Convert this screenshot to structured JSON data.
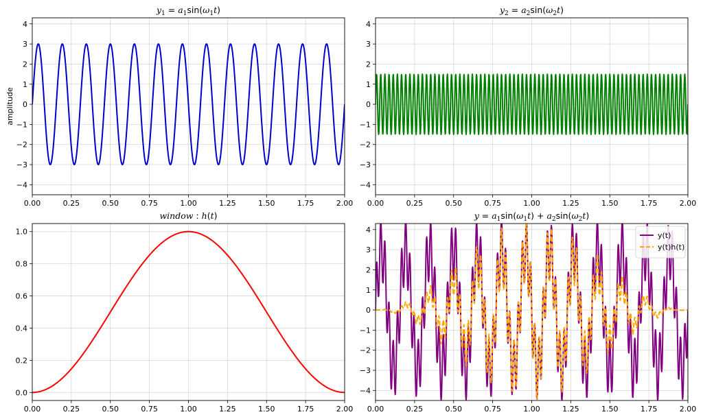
{
  "chart_data": [
    {
      "type": "line",
      "title": "y1 = a1 sin(ω1 t)",
      "title_parts": [
        "y",
        "1",
        " = ",
        "a",
        "1",
        "sin(",
        "ω",
        "1",
        "t",
        ")"
      ],
      "ylabel": "amplitude",
      "xlim": [
        0,
        2
      ],
      "ylim": [
        -4.5,
        4.3
      ],
      "x_ticks": [
        "0.00",
        "0.25",
        "0.50",
        "0.75",
        "1.00",
        "1.25",
        "1.50",
        "1.75",
        "2.00"
      ],
      "y_ticks": [
        "−4",
        "−3",
        "−2",
        "−1",
        "0",
        "1",
        "2",
        "3",
        "4"
      ],
      "grid": true,
      "series": [
        {
          "amplitude": 3,
          "frequency_hz": 6.5,
          "color": "#0000cc",
          "samples": 1000
        }
      ]
    },
    {
      "type": "line",
      "title": "y2 = a2 sin(ω2 t)",
      "title_parts": [
        "y",
        "2",
        " = ",
        "a",
        "2",
        "sin(",
        "ω",
        "2",
        "t",
        ")"
      ],
      "xlim": [
        0,
        2
      ],
      "ylim": [
        -4.5,
        4.3
      ],
      "x_ticks": [
        "0.00",
        "0.25",
        "0.50",
        "0.75",
        "1.00",
        "1.25",
        "1.50",
        "1.75",
        "2.00"
      ],
      "y_ticks": [
        "−4",
        "−3",
        "−2",
        "−1",
        "0",
        "1",
        "2",
        "3",
        "4"
      ],
      "grid": true,
      "series": [
        {
          "amplitude": 1.5,
          "frequency_hz": 37.5,
          "color": "#008000",
          "samples": 1000
        }
      ]
    },
    {
      "type": "line",
      "title": "window : h(t)",
      "title_parts": [
        "window",
        " : ",
        "h",
        "(",
        "t",
        ")"
      ],
      "xlim": [
        0,
        2
      ],
      "ylim": [
        -0.05,
        1.05
      ],
      "x_ticks": [
        "0.00",
        "0.25",
        "0.50",
        "0.75",
        "1.00",
        "1.25",
        "1.50",
        "1.75",
        "2.00"
      ],
      "y_ticks": [
        "0.0",
        "0.2",
        "0.4",
        "0.6",
        "0.8",
        "1.0"
      ],
      "grid": true,
      "series": [
        {
          "function": "hann",
          "color": "#ff0000",
          "samples": 400
        }
      ]
    },
    {
      "type": "line",
      "title": "y = a1 sin(ω1 t) + a2 sin(ω2 t)",
      "title_parts": [
        "y",
        " = ",
        "a",
        "1",
        "sin(",
        "ω",
        "1",
        "t",
        ") + ",
        "a",
        "2",
        "sin(",
        "ω",
        "2",
        "t",
        ")"
      ],
      "xlim": [
        0,
        2
      ],
      "ylim": [
        -4.5,
        4.3
      ],
      "x_ticks": [
        "0.00",
        "0.25",
        "0.50",
        "0.75",
        "1.00",
        "1.25",
        "1.50",
        "1.75",
        "2.00"
      ],
      "y_ticks": [
        "−4",
        "−3",
        "−2",
        "−1",
        "0",
        "1",
        "2",
        "3",
        "4"
      ],
      "grid": true,
      "legend": {
        "placement": "top-right"
      },
      "series": [
        {
          "name": "y(t)",
          "components": "sum",
          "color": "#800080",
          "style": "solid",
          "samples": 1000
        },
        {
          "name": "y(t)h(t)",
          "components": "sum*hann",
          "color": "#ffa500",
          "style": "dashed",
          "samples": 1000
        }
      ]
    }
  ]
}
